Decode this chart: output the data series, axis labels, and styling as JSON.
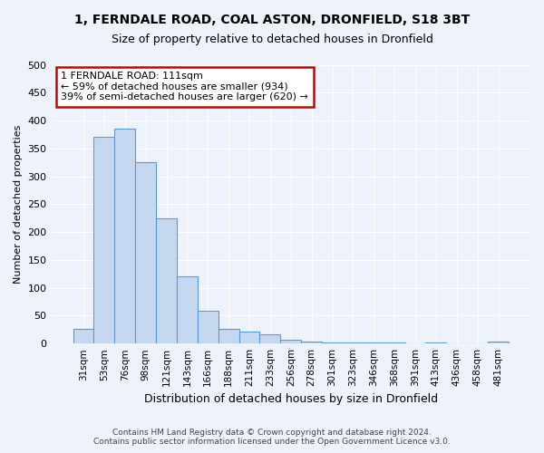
{
  "title_line1": "1, FERNDALE ROAD, COAL ASTON, DRONFIELD, S18 3BT",
  "title_line2": "Size of property relative to detached houses in Dronfield",
  "xlabel": "Distribution of detached houses by size in Dronfield",
  "ylabel": "Number of detached properties",
  "footer_line1": "Contains HM Land Registry data © Crown copyright and database right 2024.",
  "footer_line2": "Contains public sector information licensed under the Open Government Licence v3.0.",
  "bar_labels": [
    "31sqm",
    "53sqm",
    "76sqm",
    "98sqm",
    "121sqm",
    "143sqm",
    "166sqm",
    "188sqm",
    "211sqm",
    "233sqm",
    "256sqm",
    "278sqm",
    "301sqm",
    "323sqm",
    "346sqm",
    "368sqm",
    "391sqm",
    "413sqm",
    "436sqm",
    "458sqm",
    "481sqm"
  ],
  "bar_values": [
    27,
    370,
    385,
    325,
    225,
    120,
    58,
    27,
    22,
    16,
    7,
    4,
    2,
    2,
    2,
    2,
    1,
    2,
    1,
    1,
    4
  ],
  "bar_color": "#c5d8f0",
  "bar_edge_color": "#5b9bd5",
  "plot_bg_color": "#eef2fb",
  "fig_bg_color": "#eef2fb",
  "grid_color": "#ffffff",
  "annotation_text": "1 FERNDALE ROAD: 111sqm\n← 59% of detached houses are smaller (934)\n39% of semi-detached houses are larger (620) →",
  "annotation_box_color": "#ffffff",
  "annotation_box_edge_color": "#cc0000",
  "ylim": [
    0,
    500
  ],
  "yticks": [
    0,
    50,
    100,
    150,
    200,
    250,
    300,
    350,
    400,
    450,
    500
  ],
  "title1_fontsize": 10,
  "title2_fontsize": 9,
  "xlabel_fontsize": 9,
  "ylabel_fontsize": 8,
  "tick_fontsize": 8,
  "xtick_fontsize": 7.5,
  "footer_fontsize": 6.5
}
